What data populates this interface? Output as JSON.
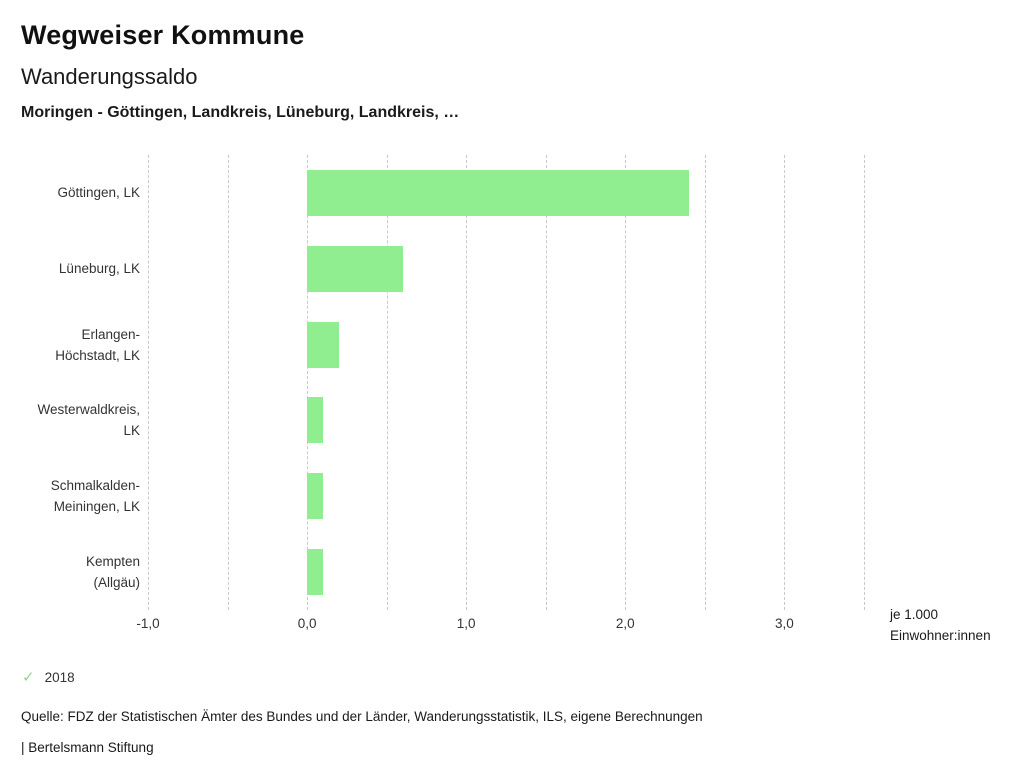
{
  "header": {
    "title": "Wegweiser Kommune",
    "subtitle": "Wanderungssaldo",
    "selection": "Moringen - Göttingen, Landkreis, Lüneburg, Landkreis, …"
  },
  "chart_data": {
    "type": "bar",
    "orientation": "horizontal",
    "title": "Wanderungssaldo",
    "categories": [
      [
        "Göttingen, LK"
      ],
      [
        "Lüneburg, LK"
      ],
      [
        "Erlangen-",
        "Höchstadt, LK"
      ],
      [
        "Westerwaldkreis,",
        "LK"
      ],
      [
        "Schmalkalden-",
        "Meiningen, LK"
      ],
      [
        "Kempten",
        "(Allgäu)"
      ]
    ],
    "series": [
      {
        "name": "2018",
        "values": [
          2.4,
          0.6,
          0.2,
          0.1,
          0.1,
          0.1
        ]
      }
    ],
    "xlim": [
      -1.0,
      3.5
    ],
    "grid_step": 0.5,
    "x_ticks": [
      -1.0,
      0.0,
      1.0,
      2.0,
      3.0
    ],
    "x_tick_labels": [
      "-1,0",
      "0,0",
      "1,0",
      "2,0",
      "3,0"
    ],
    "xlabel": "je 1.000 Einwohner:innen",
    "ylabel": "",
    "grid": "vertical-dashed",
    "legend_position": "bottom-left",
    "bar_color": "#90ee90"
  },
  "unit_label": {
    "line1": "je 1.000",
    "line2": "Einwohner:innen"
  },
  "legend": {
    "check_icon": "✓",
    "check_color": "#90d98f",
    "year": "2018"
  },
  "footer": {
    "source": "Quelle: FDZ der Statistischen Ämter des Bundes und der Länder, Wanderungsstatistik, ILS, eigene Berechnungen",
    "branding": "| Bertelsmann Stiftung"
  }
}
